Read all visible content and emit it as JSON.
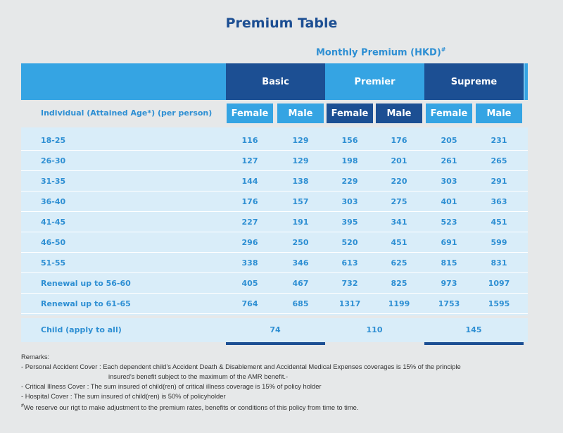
{
  "title": "Premium Table",
  "monthly_premium_label": "Monthly Premium (HKD)",
  "monthly_premium_mark": "#",
  "plans": [
    "Basic",
    "Premier",
    "Supreme"
  ],
  "individual_label": "Individual (Attained Age*) (per person)",
  "genders": [
    "Female",
    "Male",
    "Female",
    "Male",
    "Female",
    "Male"
  ],
  "rows": [
    {
      "age": "18-25",
      "values": [
        "116",
        "129",
        "156",
        "176",
        "205",
        "231"
      ]
    },
    {
      "age": "26-30",
      "values": [
        "127",
        "129",
        "198",
        "201",
        "261",
        "265"
      ]
    },
    {
      "age": "31-35",
      "values": [
        "144",
        "138",
        "229",
        "220",
        "303",
        "291"
      ]
    },
    {
      "age": "36-40",
      "values": [
        "176",
        "157",
        "303",
        "275",
        "401",
        "363"
      ]
    },
    {
      "age": "41-45",
      "values": [
        "227",
        "191",
        "395",
        "341",
        "523",
        "451"
      ]
    },
    {
      "age": "46-50",
      "values": [
        "296",
        "250",
        "520",
        "451",
        "691",
        "599"
      ]
    },
    {
      "age": "51-55",
      "values": [
        "338",
        "346",
        "613",
        "625",
        "815",
        "831"
      ]
    },
    {
      "age": "Renewal up to 56-60",
      "values": [
        "405",
        "467",
        "732",
        "825",
        "973",
        "1097"
      ]
    },
    {
      "age": "Renewal up to 61-65",
      "values": [
        "764",
        "685",
        "1317",
        "1199",
        "1753",
        "1595"
      ]
    }
  ],
  "child": {
    "label": "Child (apply to all)",
    "values": [
      "74",
      "110",
      "145"
    ]
  },
  "remarks": {
    "heading": "Remarks:",
    "pa_line1": "- Personal Accident Cover : Each dependent child’s Accident Death & Disablement and Accidental Medical Expenses coverages is 15% of the principle",
    "pa_line2": "insured’s benefit subject to the maximum of the AMR benefit.-",
    "ci": "- Critical Illness Cover : The sum insured of child(ren) of critical illness coverage is 15% of policy holder",
    "hc": "- Hospital Cover : The sum insured of child(ren) is 50% of policyholder",
    "note_mark": "#",
    "note": "We reserve our rigt to make adjustment to the premium rates, benefits or conditions of this policy from time to time."
  }
}
